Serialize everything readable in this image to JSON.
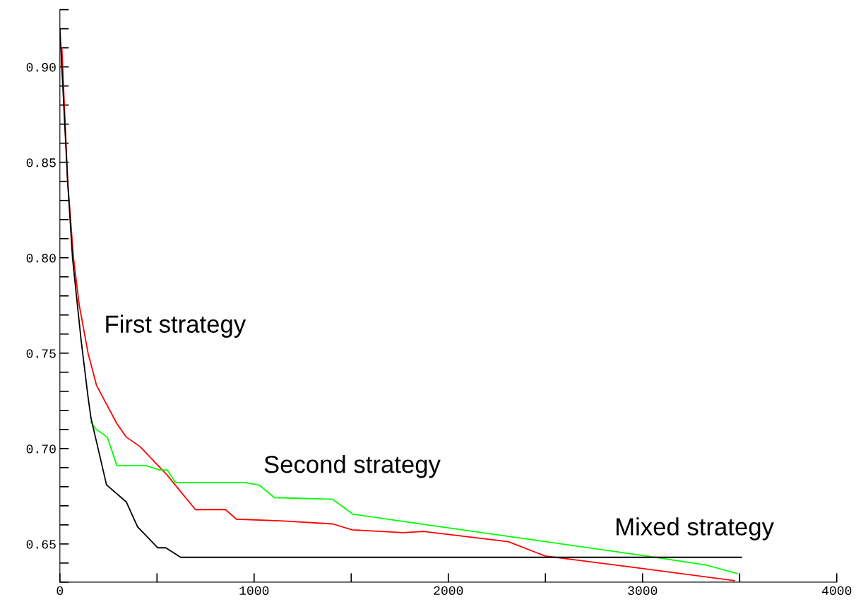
{
  "chart_data": {
    "type": "line",
    "series": [
      {
        "name": "First strategy",
        "color": "#ff0000",
        "x": [
          10,
          40,
          70,
          100,
          145,
          189,
          294,
          342,
          413,
          553,
          698,
          853,
          909,
          1153,
          1405,
          1504,
          1769,
          1873,
          2309,
          2498,
          3007,
          3473
        ],
        "values": [
          0.91,
          0.84,
          0.8,
          0.775,
          0.75,
          0.733,
          0.713,
          0.706,
          0.701,
          0.686,
          0.668,
          0.668,
          0.663,
          0.662,
          0.6605,
          0.6574,
          0.6559,
          0.6566,
          0.6512,
          0.6437,
          0.637,
          0.6308
        ]
      },
      {
        "name": "Second strategy",
        "color": "#00ff00",
        "x": [
          160,
          182,
          244,
          294,
          447,
          511,
          553,
          595,
          951,
          1028,
          1105,
          1405,
          1509,
          1873,
          3000,
          3327,
          3487
        ],
        "values": [
          0.714,
          0.7105,
          0.706,
          0.691,
          0.691,
          0.6888,
          0.6888,
          0.6822,
          0.6822,
          0.6808,
          0.6743,
          0.6734,
          0.6656,
          0.6603,
          0.644,
          0.639,
          0.6345
        ]
      },
      {
        "name": "Mixed strategy",
        "color": "#000000",
        "x": [
          0,
          40,
          65,
          73,
          109,
          145,
          160,
          240,
          342,
          400,
          504,
          545,
          622,
          3509
        ],
        "values": [
          0.92,
          0.84,
          0.8,
          0.792,
          0.757,
          0.727,
          0.716,
          0.681,
          0.672,
          0.659,
          0.648,
          0.648,
          0.643,
          0.643
        ]
      }
    ],
    "xlim": [
      0,
      4000
    ],
    "xticks": [
      0,
      {
        "value": 500,
        "label": null
      },
      1000,
      {
        "value": 1500,
        "label": null
      },
      2000,
      {
        "value": 2500,
        "label": null
      },
      3000,
      {
        "value": 3500,
        "label": null
      },
      4000
    ],
    "ylim": [
      0.63,
      0.93
    ],
    "yticks": [
      {
        "value": 0.63,
        "label": null
      },
      {
        "value": 0.64,
        "label": null
      },
      {
        "value": 0.65,
        "label": "0.65"
      },
      {
        "value": 0.66,
        "label": null
      },
      {
        "value": 0.67,
        "label": null
      },
      {
        "value": 0.68,
        "label": null
      },
      {
        "value": 0.69,
        "label": null
      },
      {
        "value": 0.7,
        "label": "0.70"
      },
      {
        "value": 0.71,
        "label": null
      },
      {
        "value": 0.72,
        "label": null
      },
      {
        "value": 0.73,
        "label": null
      },
      {
        "value": 0.74,
        "label": null
      },
      {
        "value": 0.75,
        "label": "0.75"
      },
      {
        "value": 0.76,
        "label": null
      },
      {
        "value": 0.77,
        "label": null
      },
      {
        "value": 0.78,
        "label": null
      },
      {
        "value": 0.79,
        "label": null
      },
      {
        "value": 0.8,
        "label": "0.80"
      },
      {
        "value": 0.81,
        "label": null
      },
      {
        "value": 0.82,
        "label": null
      },
      {
        "value": 0.83,
        "label": null
      },
      {
        "value": 0.84,
        "label": null
      },
      {
        "value": 0.85,
        "label": "0.85"
      },
      {
        "value": 0.86,
        "label": null
      },
      {
        "value": 0.87,
        "label": null
      },
      {
        "value": 0.88,
        "label": null
      },
      {
        "value": 0.89,
        "label": null
      },
      {
        "value": 0.9,
        "label": "0.90"
      },
      {
        "value": 0.91,
        "label": null
      },
      {
        "value": 0.92,
        "label": null
      },
      {
        "value": 0.93,
        "label": null
      }
    ],
    "grid": false,
    "legend": false
  }
}
